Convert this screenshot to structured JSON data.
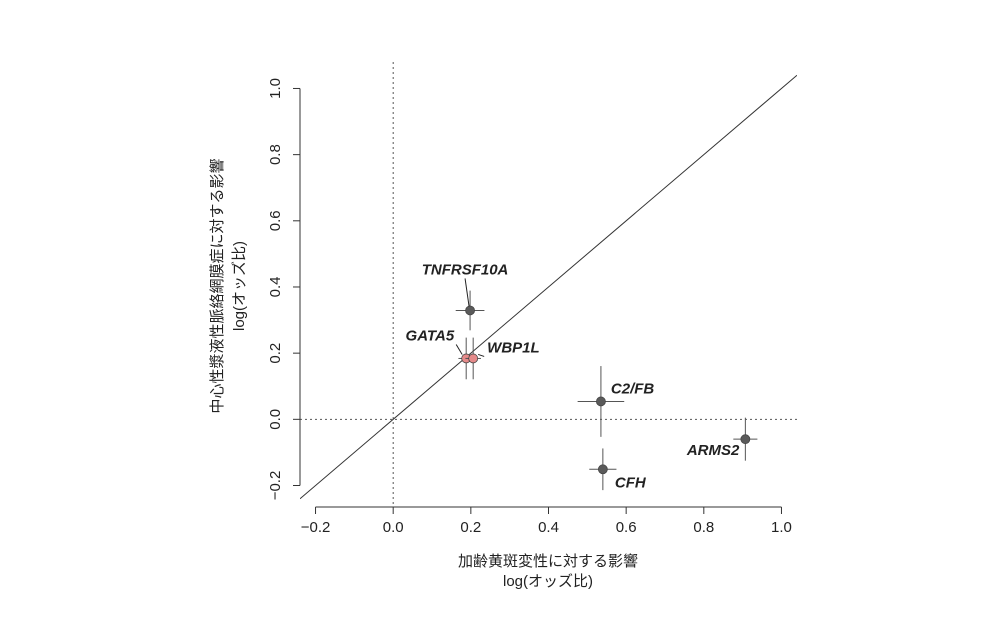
{
  "chart_data": {
    "type": "scatter",
    "x_label": [
      "加齢黄斑変性に対する影響",
      "log(オッズ比)"
    ],
    "y_label": [
      "中心性漿液性脈絡網膜症に対する影響",
      "log(オッズ比)"
    ],
    "xlim": [
      -0.24,
      1.04
    ],
    "ylim": [
      -0.265,
      1.08
    ],
    "xticks": [
      {
        "value": -0.2,
        "label": "−0.2"
      },
      {
        "value": 0,
        "label": "0.0"
      },
      0.2,
      0.4,
      0.6,
      0.8,
      {
        "value": 1,
        "label": "1.0"
      }
    ],
    "yticks": [
      {
        "value": -0.2,
        "label": "−0.2"
      },
      {
        "value": 0,
        "label": "0.0"
      },
      0.2,
      0.4,
      0.6,
      0.8,
      {
        "value": 1,
        "label": "1.0"
      }
    ],
    "points": [
      {
        "label": "TNFRSF10A",
        "x": 0.198,
        "y": 0.329,
        "x_err": 0.037,
        "y_err": 0.06,
        "color": "#5a5a5a"
      },
      {
        "label": "GATA5",
        "x": 0.188,
        "y": 0.184,
        "x_err": 0.02,
        "y_err": 0.063,
        "color": "#e58a8a"
      },
      {
        "label": "WBP1L",
        "x": 0.206,
        "y": 0.184,
        "x_err": 0.02,
        "y_err": 0.063,
        "color": "#e58a8a"
      },
      {
        "label": "C2/FB",
        "x": 0.535,
        "y": 0.054,
        "x_err": 0.06,
        "y_err": 0.107,
        "color": "#5a5a5a"
      },
      {
        "label": "ARMS2",
        "x": 0.907,
        "y": -0.06,
        "x_err": 0.031,
        "y_err": 0.065,
        "color": "#5a5a5a"
      },
      {
        "label": "CFH",
        "x": 0.54,
        "y": -0.151,
        "x_err": 0.035,
        "y_err": 0.063,
        "color": "#5a5a5a"
      }
    ]
  }
}
